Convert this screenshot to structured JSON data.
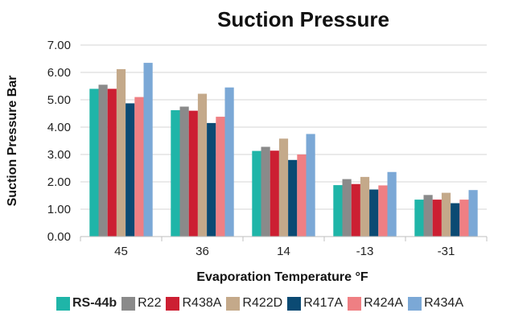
{
  "chart_data": {
    "type": "bar",
    "title": "Suction Pressure",
    "xlabel": "Evaporation Temperature °F",
    "ylabel": "Suction Pressure Bar",
    "categories": [
      "45",
      "36",
      "14",
      "-13",
      "-31"
    ],
    "ylim": [
      0,
      7
    ],
    "yticks": [
      "0.00",
      "1.00",
      "2.00",
      "3.00",
      "4.00",
      "5.00",
      "6.00",
      "7.00"
    ],
    "grid": true,
    "legend_position": "bottom",
    "series": [
      {
        "name": "RS-44b",
        "color": "#1fb5a8",
        "values": [
          5.4,
          4.62,
          3.13,
          1.88,
          1.35
        ]
      },
      {
        "name": "R22",
        "color": "#8a8a8a",
        "values": [
          5.55,
          4.75,
          3.28,
          2.1,
          1.52
        ]
      },
      {
        "name": "R438A",
        "color": "#cc1f32",
        "values": [
          5.4,
          4.6,
          3.14,
          1.92,
          1.35
        ]
      },
      {
        "name": "R422D",
        "color": "#c4a98a",
        "values": [
          6.12,
          5.22,
          3.58,
          2.18,
          1.6
        ]
      },
      {
        "name": "R417A",
        "color": "#0b4a73",
        "values": [
          4.87,
          4.15,
          2.8,
          1.72,
          1.22
        ]
      },
      {
        "name": "R424A",
        "color": "#ef7f83",
        "values": [
          5.1,
          4.38,
          3.0,
          1.87,
          1.35
        ]
      },
      {
        "name": "R434A",
        "color": "#7ba8d6",
        "values": [
          6.35,
          5.45,
          3.75,
          2.36,
          1.7
        ]
      }
    ]
  }
}
